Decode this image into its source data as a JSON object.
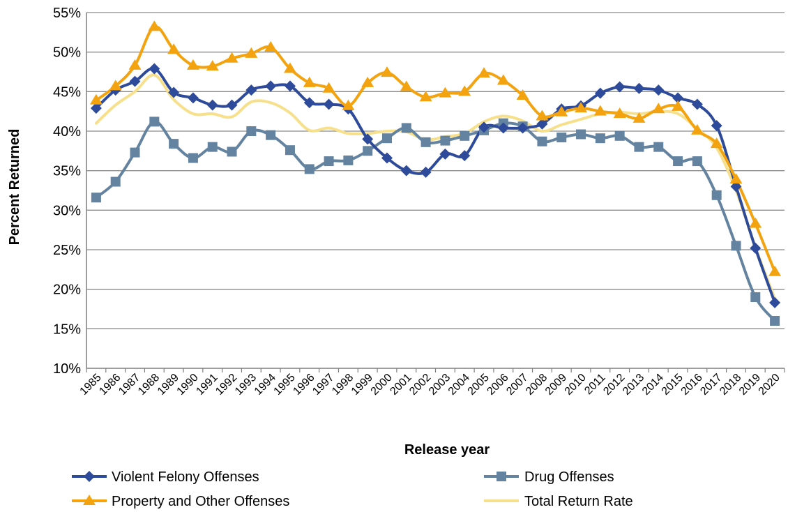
{
  "chart_data": {
    "type": "line",
    "title": "",
    "xlabel": "Release year",
    "ylabel": "Percent Returned",
    "ylim": [
      10,
      55
    ],
    "yticks": [
      10,
      15,
      20,
      25,
      30,
      35,
      40,
      45,
      50,
      55
    ],
    "ytick_labels": [
      "10%",
      "15%",
      "20%",
      "25%",
      "30%",
      "35%",
      "40%",
      "45%",
      "50%",
      "55%"
    ],
    "grid": "horizontal",
    "legend_position": "bottom",
    "x": [
      "1985",
      "1986",
      "1987",
      "1988",
      "1989",
      "1990",
      "1991",
      "1992",
      "1993",
      "1994",
      "1995",
      "1996",
      "1997",
      "1998",
      "1999",
      "2000",
      "2001",
      "2002",
      "2003",
      "2004",
      "2005",
      "2006",
      "2007",
      "2008",
      "2009",
      "2010",
      "2011",
      "2012",
      "2013",
      "2014",
      "2015",
      "2016",
      "2017",
      "2018",
      "2019",
      "2020"
    ],
    "series": [
      {
        "name": "Violent Felony Offenses",
        "color": "#2E4A9A",
        "marker": "diamond",
        "values": [
          42.9,
          45.2,
          46.3,
          47.9,
          44.9,
          44.2,
          43.3,
          43.3,
          45.2,
          45.7,
          45.7,
          43.6,
          43.4,
          42.8,
          39.0,
          36.6,
          35.0,
          34.8,
          37.1,
          36.9,
          40.5,
          40.4,
          40.4,
          40.9,
          42.8,
          43.2,
          44.8,
          45.6,
          45.4,
          45.2,
          44.2,
          43.4,
          40.7,
          33.0,
          25.2,
          18.3
        ]
      },
      {
        "name": "Drug Offenses",
        "color": "#6383A0",
        "marker": "square",
        "values": [
          31.6,
          33.6,
          37.3,
          41.2,
          38.4,
          36.6,
          38.0,
          37.4,
          40.0,
          39.5,
          37.6,
          35.2,
          36.2,
          36.3,
          37.5,
          39.1,
          40.4,
          38.6,
          38.8,
          39.4,
          40.1,
          41.0,
          40.6,
          38.7,
          39.2,
          39.6,
          39.1,
          39.4,
          38.0,
          38.0,
          36.2,
          36.2,
          31.9,
          25.5,
          19.0,
          16.0
        ]
      },
      {
        "name": "Property and Other Offenses",
        "color": "#F2A30F",
        "marker": "triangle",
        "values": [
          43.9,
          45.7,
          48.3,
          53.2,
          50.3,
          48.3,
          48.2,
          49.2,
          49.8,
          50.6,
          47.9,
          46.1,
          45.4,
          43.2,
          46.1,
          47.4,
          45.6,
          44.3,
          44.8,
          45.0,
          47.3,
          46.4,
          44.5,
          41.9,
          42.4,
          42.9,
          42.5,
          42.2,
          41.6,
          42.8,
          43.1,
          40.1,
          38.4,
          33.9,
          28.3,
          22.2
        ]
      },
      {
        "name": "Total Return Rate",
        "color": "#F7E08C",
        "marker": "none",
        "values": [
          41.0,
          43.3,
          45.0,
          47.1,
          44.0,
          42.2,
          42.2,
          41.8,
          43.7,
          43.6,
          42.3,
          40.1,
          40.4,
          39.7,
          39.7,
          40.0,
          39.9,
          38.9,
          39.3,
          39.7,
          41.2,
          41.9,
          41.3,
          40.0,
          40.8,
          41.5,
          42.2,
          42.4,
          42.2,
          42.5,
          42.2,
          40.3,
          37.9,
          32.5,
          25.3,
          18.8
        ]
      }
    ]
  }
}
